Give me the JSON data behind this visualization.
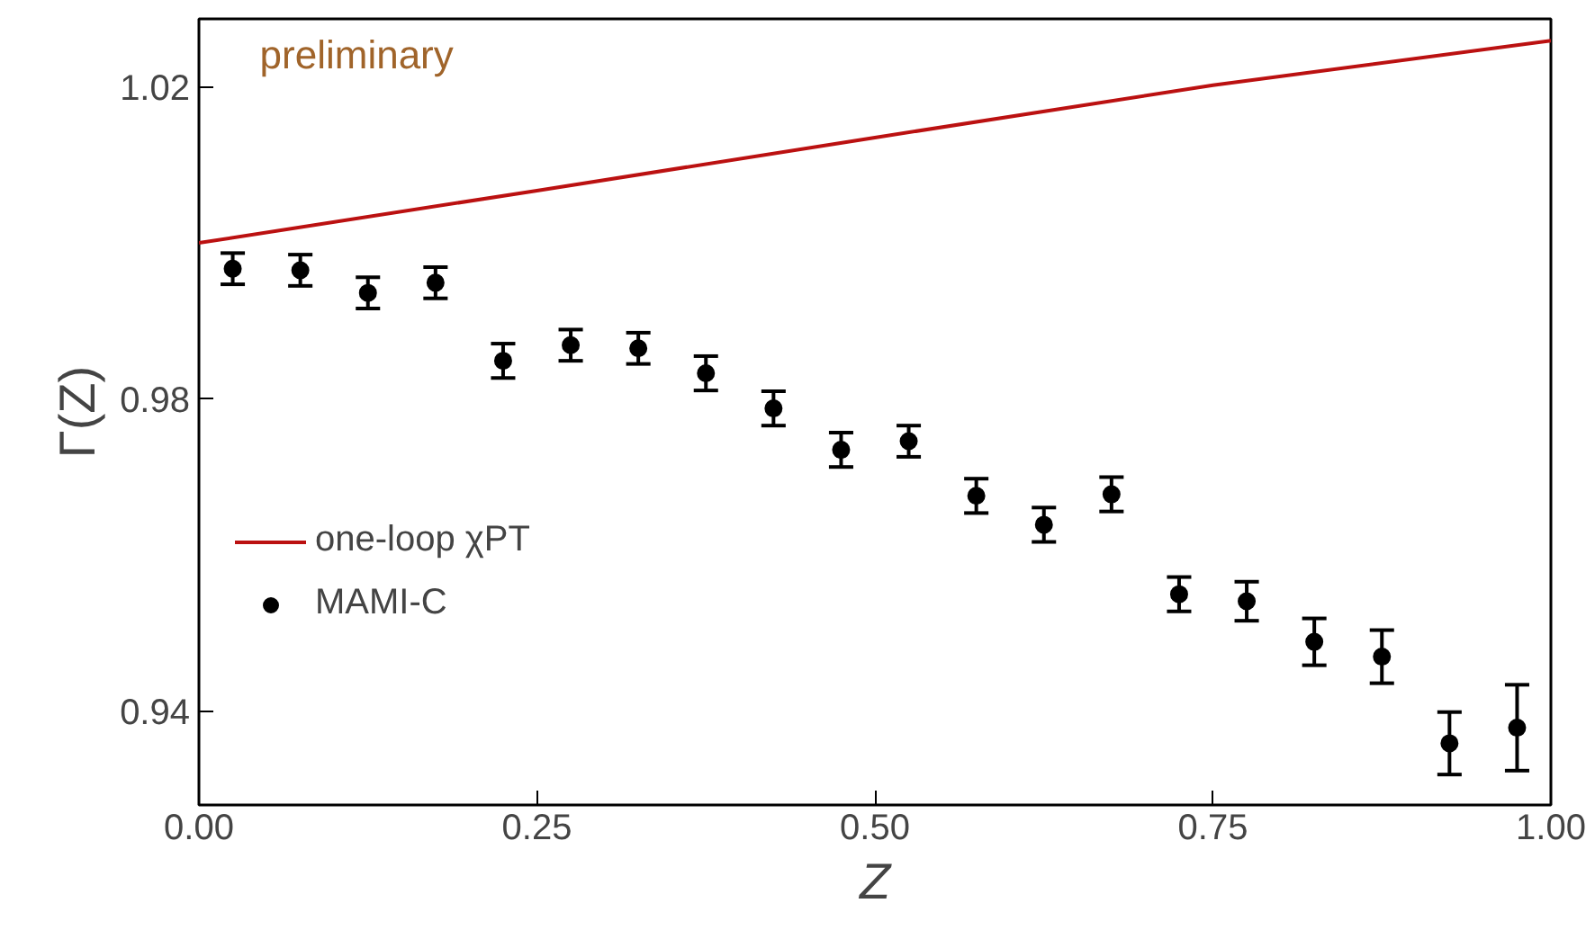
{
  "chart_data": {
    "type": "scatter",
    "xlabel": "Z",
    "ylabel": "Γ(Z)",
    "xlim": [
      0,
      1
    ],
    "ylim": [
      0.928,
      1.0287
    ],
    "xticks": [
      {
        "value": 0,
        "label": "0.00"
      },
      {
        "value": 0.25,
        "label": "0.25"
      },
      {
        "value": 0.5,
        "label": "0.50"
      },
      {
        "value": 0.75,
        "label": "0.75"
      },
      {
        "value": 1,
        "label": "1.00"
      }
    ],
    "yticks": [
      0.94,
      0.98,
      1.02
    ],
    "grid": false,
    "legend": "left",
    "annotations": [
      "preliminary"
    ],
    "series": [
      {
        "name": "one-loop χPT",
        "type": "line",
        "color": "#bb1111",
        "line_style": "solid",
        "x": [
          0,
          0.25,
          0.5,
          0.75,
          1.0
        ],
        "values": [
          1.0,
          1.0067,
          1.0135,
          1.0202,
          1.0259
        ]
      },
      {
        "name": "MAMI-C",
        "color": "#000000",
        "marker": "circle",
        "x": [
          0.025,
          0.075,
          0.125,
          0.175,
          0.225,
          0.275,
          0.325,
          0.375,
          0.425,
          0.475,
          0.525,
          0.575,
          0.625,
          0.675,
          0.725,
          0.775,
          0.825,
          0.875,
          0.925,
          0.975
        ],
        "values": [
          0.9967,
          0.9965,
          0.9936,
          0.9949,
          0.9849,
          0.9869,
          0.9865,
          0.9833,
          0.9788,
          0.9735,
          0.9746,
          0.9676,
          0.9639,
          0.9678,
          0.955,
          0.9541,
          0.9489,
          0.947,
          0.9359,
          0.9379
        ],
        "errors": [
          0.002,
          0.002,
          0.002,
          0.002,
          0.0022,
          0.002,
          0.002,
          0.0022,
          0.0022,
          0.0022,
          0.002,
          0.0022,
          0.0022,
          0.0022,
          0.0022,
          0.0025,
          0.003,
          0.0034,
          0.004,
          0.0055
        ]
      }
    ]
  }
}
